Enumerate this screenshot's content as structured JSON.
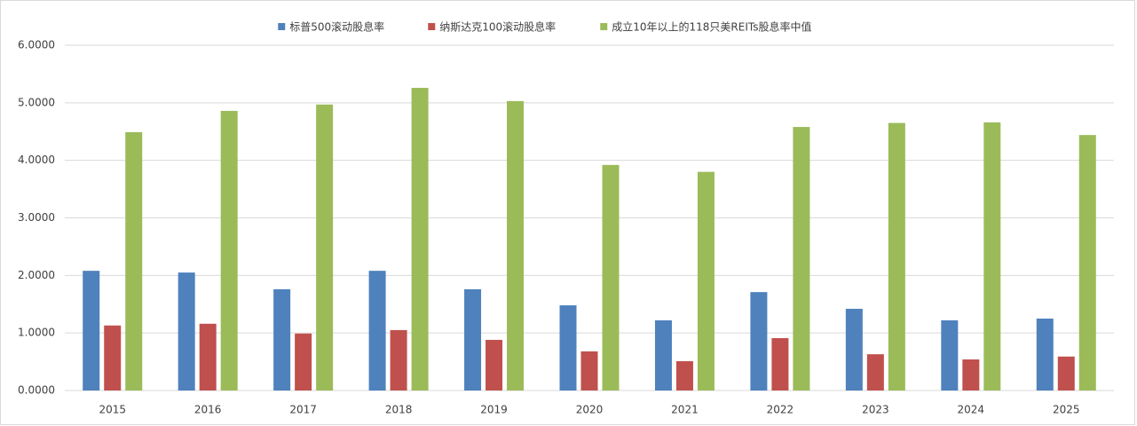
{
  "chart_data": {
    "type": "bar",
    "categories": [
      "2015",
      "2016",
      "2017",
      "2018",
      "2019",
      "2020",
      "2021",
      "2022",
      "2023",
      "2024",
      "2025"
    ],
    "series": [
      {
        "name": "标普500滚动股息率",
        "color": "#4f81bd",
        "values": [
          2.08,
          2.05,
          1.76,
          2.08,
          1.76,
          1.48,
          1.22,
          1.71,
          1.42,
          1.22,
          1.25
        ]
      },
      {
        "name": "纳斯达克100滚动股息率",
        "color": "#c0504d",
        "values": [
          1.13,
          1.16,
          0.99,
          1.05,
          0.88,
          0.68,
          0.51,
          0.91,
          0.63,
          0.54,
          0.59
        ]
      },
      {
        "name": "成立10年以上的118只美REITs股息率中值",
        "color": "#9bbb59",
        "values": [
          4.49,
          4.86,
          4.97,
          5.26,
          5.03,
          3.92,
          3.8,
          4.58,
          4.65,
          4.66,
          4.44
        ]
      }
    ],
    "ylim": [
      0,
      6
    ],
    "yticks": [
      {
        "value": 0,
        "label": "0.0000"
      },
      {
        "value": 1,
        "label": "1.0000"
      },
      {
        "value": 2,
        "label": "2.0000"
      },
      {
        "value": 3,
        "label": "3.0000"
      },
      {
        "value": 4,
        "label": "4.0000"
      },
      {
        "value": 5,
        "label": "5.0000"
      },
      {
        "value": 6,
        "label": "6.0000"
      }
    ],
    "grid": true,
    "legend": "top"
  }
}
